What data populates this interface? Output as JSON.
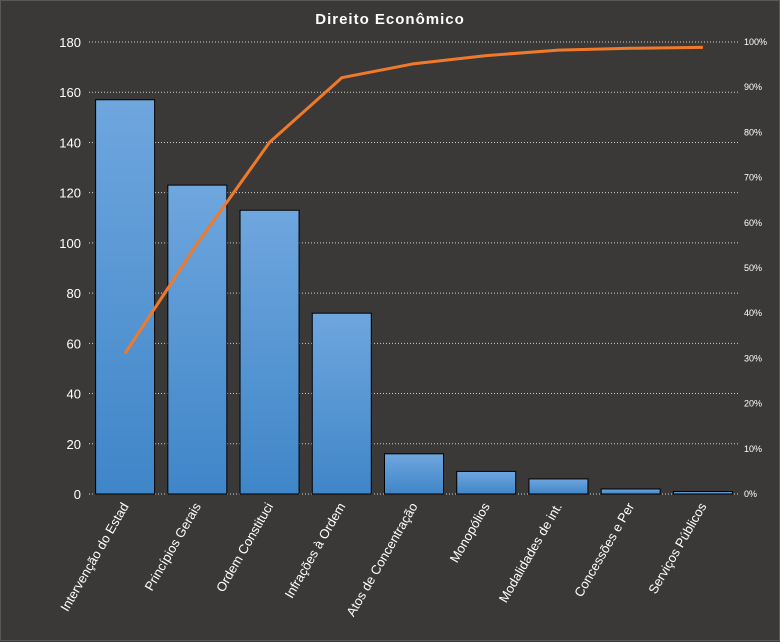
{
  "chart_data": {
    "type": "bar",
    "title": "Direito  Econômico",
    "xlabel": "",
    "ylabel": "",
    "categories": [
      "Intervenção do Estad",
      "Princípios Gerais",
      "Ordem Constituci",
      "Infrações à Ordem",
      "Atos de Concentração",
      "Monopólios",
      "Modalidades de int.",
      "Concessões e Per",
      "Serviços Públicos"
    ],
    "series": [
      {
        "type": "bar",
        "values": [
          157,
          123,
          113,
          72,
          16,
          9,
          6,
          2,
          1
        ]
      },
      {
        "type": "line",
        "axis": "secondary",
        "values": [
          31.1,
          55.4,
          77.8,
          92.1,
          95.2,
          97.0,
          98.2,
          98.6,
          98.8
        ]
      }
    ],
    "ylim": [
      0,
      180
    ],
    "yticks": [
      "0",
      "20",
      "40",
      "60",
      "80",
      "100",
      "120",
      "140",
      "160",
      "180"
    ],
    "y2lim": [
      0,
      100
    ],
    "y2ticks": [
      "0%",
      "10%",
      "20%",
      "30%",
      "40%",
      "50%",
      "60%",
      "70%",
      "80%",
      "90%",
      "100%"
    ],
    "grid": true,
    "legend": "none",
    "colors": {
      "bar_top": "#6fa6de",
      "bar_bottom": "#3f86c8",
      "bar_border": "#000000",
      "line": "#f07a2a",
      "grid": "#cfcfcf",
      "background": "#3b3938",
      "text": "#ffffff"
    }
  }
}
